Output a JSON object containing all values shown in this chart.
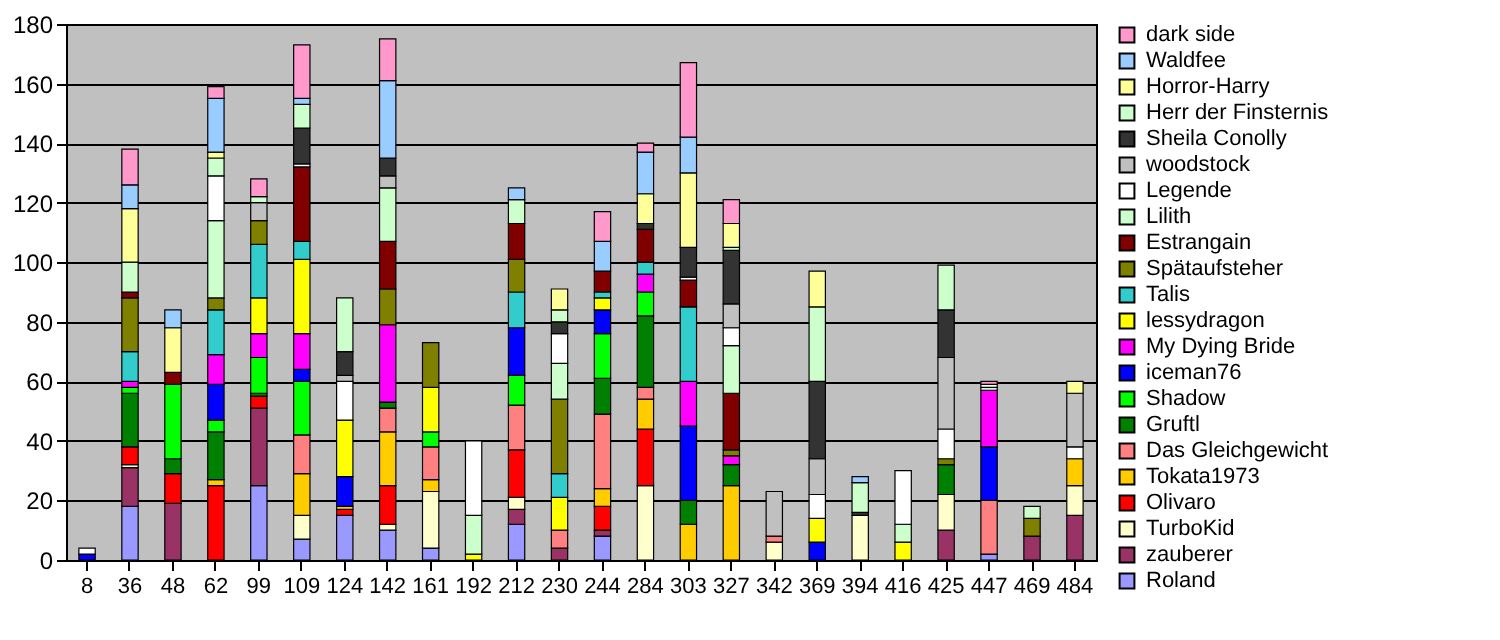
{
  "chart_data": {
    "type": "bar",
    "stacked": true,
    "categories": [
      "8",
      "36",
      "48",
      "62",
      "99",
      "109",
      "124",
      "142",
      "161",
      "192",
      "212",
      "230",
      "244",
      "284",
      "303",
      "327",
      "342",
      "369",
      "394",
      "416",
      "425",
      "447",
      "469",
      "484"
    ],
    "ylim": [
      0,
      180
    ],
    "yticks": [
      0,
      20,
      40,
      60,
      80,
      100,
      120,
      140,
      160,
      180
    ],
    "grid": "y",
    "legend": "right",
    "series": [
      {
        "name": "Roland",
        "color": "#9999ff",
        "values": [
          null,
          18,
          null,
          null,
          25,
          7,
          15,
          10,
          4,
          null,
          12,
          null,
          8,
          null,
          null,
          null,
          null,
          null,
          null,
          null,
          null,
          2,
          null,
          null
        ]
      },
      {
        "name": "zauberer",
        "color": "#993366",
        "values": [
          null,
          13,
          19,
          null,
          26,
          null,
          null,
          null,
          null,
          null,
          5,
          4,
          2,
          null,
          null,
          null,
          null,
          null,
          null,
          null,
          10,
          null,
          8,
          15
        ]
      },
      {
        "name": "TurboKid",
        "color": "#ffffcc",
        "values": [
          null,
          1,
          null,
          null,
          null,
          8,
          null,
          2,
          19,
          null,
          4,
          null,
          null,
          25,
          null,
          null,
          6,
          null,
          15,
          null,
          12,
          null,
          null,
          10
        ]
      },
      {
        "name": "Olivaro",
        "color": "#ff0000",
        "values": [
          null,
          6,
          10,
          25,
          4,
          null,
          2,
          13,
          null,
          null,
          16,
          null,
          8,
          19,
          null,
          null,
          null,
          null,
          null,
          null,
          null,
          null,
          null,
          null
        ]
      },
      {
        "name": "Tokata1973",
        "color": "#ffcc00",
        "values": [
          null,
          null,
          null,
          2,
          null,
          14,
          1,
          18,
          4,
          null,
          null,
          null,
          6,
          10,
          12,
          25,
          null,
          null,
          null,
          null,
          null,
          null,
          null,
          9
        ]
      },
      {
        "name": "Das Gleichgewicht",
        "color": "#ff8080",
        "values": [
          null,
          null,
          null,
          null,
          null,
          13,
          null,
          8,
          11,
          null,
          15,
          6,
          25,
          4,
          null,
          null,
          2,
          null,
          null,
          null,
          null,
          18,
          null,
          null
        ]
      },
      {
        "name": "Gruftl",
        "color": "#008000",
        "values": [
          null,
          18,
          5,
          16,
          1,
          null,
          null,
          2,
          null,
          null,
          null,
          null,
          12,
          24,
          8,
          7,
          null,
          null,
          null,
          null,
          10,
          null,
          null,
          null
        ]
      },
      {
        "name": "Shadow",
        "color": "#00ff00",
        "values": [
          null,
          2,
          25,
          4,
          12,
          18,
          null,
          null,
          5,
          null,
          10,
          null,
          15,
          8,
          null,
          null,
          null,
          null,
          null,
          null,
          null,
          null,
          null,
          null
        ]
      },
      {
        "name": "iceman76",
        "color": "#0000ff",
        "values": [
          2,
          null,
          null,
          12,
          null,
          4,
          10,
          null,
          null,
          null,
          16,
          null,
          8,
          null,
          25,
          null,
          null,
          6,
          null,
          null,
          null,
          18,
          null,
          null
        ]
      },
      {
        "name": "My Dying Bride",
        "color": "#ff00ff",
        "values": [
          null,
          2,
          null,
          10,
          8,
          12,
          null,
          26,
          null,
          null,
          null,
          null,
          null,
          6,
          15,
          3,
          null,
          null,
          null,
          null,
          null,
          19,
          null,
          null
        ]
      },
      {
        "name": "lessydragon",
        "color": "#ffff00",
        "values": [
          null,
          null,
          null,
          null,
          12,
          25,
          19,
          null,
          15,
          2,
          null,
          11,
          4,
          null,
          null,
          null,
          null,
          8,
          null,
          6,
          null,
          null,
          null,
          null
        ]
      },
      {
        "name": "Talis",
        "color": "#33cccc",
        "values": [
          null,
          10,
          null,
          15,
          18,
          6,
          null,
          null,
          null,
          null,
          12,
          8,
          2,
          4,
          25,
          null,
          null,
          null,
          null,
          null,
          null,
          null,
          null,
          null
        ]
      },
      {
        "name": "Spätaufsteher",
        "color": "#808000",
        "values": [
          null,
          18,
          null,
          4,
          8,
          null,
          null,
          12,
          15,
          null,
          11,
          25,
          null,
          null,
          null,
          2,
          null,
          null,
          null,
          null,
          2,
          null,
          6,
          null
        ]
      },
      {
        "name": "Estrangain",
        "color": "#800000",
        "values": [
          null,
          2,
          4,
          null,
          null,
          25,
          null,
          16,
          null,
          null,
          12,
          null,
          7,
          11,
          9,
          19,
          null,
          null,
          null,
          null,
          null,
          null,
          null,
          null
        ]
      },
      {
        "name": "Lilith",
        "color": "#ccffcc",
        "values": [
          null,
          10,
          null,
          26,
          null,
          null,
          null,
          18,
          null,
          13,
          null,
          12,
          null,
          null,
          null,
          16,
          null,
          null,
          null,
          6,
          null,
          1,
          4,
          null
        ]
      },
      {
        "name": "Legende",
        "color": "#ffffff",
        "values": [
          2,
          null,
          null,
          15,
          null,
          1,
          13,
          null,
          null,
          25,
          null,
          10,
          null,
          null,
          1,
          6,
          null,
          8,
          null,
          18,
          10,
          1,
          null,
          4
        ]
      },
      {
        "name": "woodstock",
        "color": "#c0c0c0",
        "values": [
          null,
          null,
          null,
          null,
          6,
          null,
          2,
          4,
          null,
          null,
          null,
          null,
          null,
          null,
          null,
          8,
          15,
          12,
          null,
          null,
          24,
          null,
          null,
          18
        ]
      },
      {
        "name": "Sheila Conolly",
        "color": "#333333",
        "values": [
          null,
          null,
          null,
          null,
          null,
          12,
          8,
          6,
          null,
          null,
          null,
          4,
          null,
          2,
          10,
          18,
          null,
          26,
          1,
          null,
          16,
          null,
          null,
          null
        ]
      },
      {
        "name": "Herr der Finsternis",
        "color": "#ccffcc",
        "values": [
          null,
          null,
          null,
          6,
          2,
          8,
          18,
          null,
          null,
          null,
          8,
          4,
          null,
          null,
          null,
          1,
          null,
          25,
          10,
          null,
          15,
          null,
          null,
          null
        ]
      },
      {
        "name": "Horror-Harry",
        "color": "#ffff99",
        "values": [
          null,
          18,
          15,
          2,
          null,
          null,
          null,
          null,
          null,
          null,
          null,
          7,
          null,
          10,
          25,
          8,
          null,
          12,
          null,
          null,
          null,
          null,
          null,
          4
        ]
      },
      {
        "name": "Waldfee",
        "color": "#99ccff",
        "values": [
          null,
          8,
          6,
          18,
          null,
          2,
          null,
          26,
          null,
          null,
          4,
          null,
          10,
          14,
          12,
          null,
          null,
          null,
          2,
          null,
          null,
          null,
          null,
          null
        ]
      },
      {
        "name": "dark side",
        "color": "#ff99cc",
        "values": [
          null,
          12,
          null,
          4,
          6,
          18,
          null,
          14,
          null,
          null,
          null,
          null,
          10,
          3,
          25,
          8,
          null,
          null,
          null,
          null,
          null,
          1,
          null,
          null
        ]
      }
    ]
  }
}
